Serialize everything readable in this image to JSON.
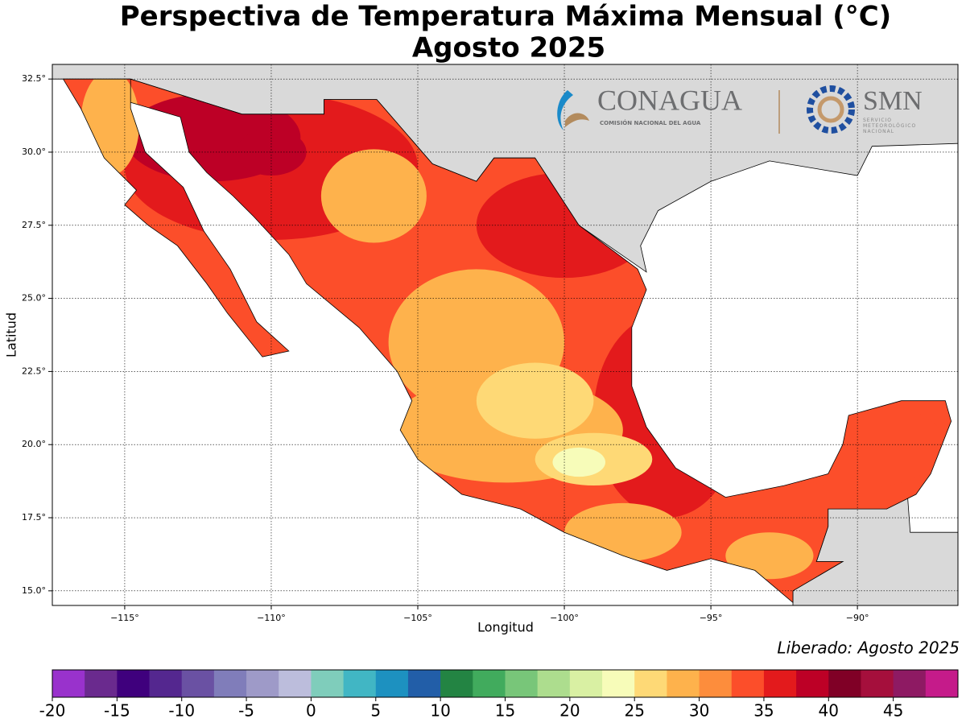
{
  "title": "Perspectiva de Temperatura Máxima Mensual (°C)",
  "subtitle": "Agosto 2025",
  "map": {
    "x_label": "Longitud",
    "y_label": "Latitud",
    "xlim": [
      -117.47,
      -86.57
    ],
    "ylim": [
      14.5,
      33.0
    ],
    "xticks": [
      {
        "value": -115,
        "label": "−115°"
      },
      {
        "value": -110,
        "label": "−110°"
      },
      {
        "value": -105,
        "label": "−105°"
      },
      {
        "value": -100,
        "label": "−100°"
      },
      {
        "value": -95,
        "label": "−95°"
      },
      {
        "value": -90,
        "label": "−90°"
      }
    ],
    "yticks": [
      {
        "value": 15,
        "label": "15.0°"
      },
      {
        "value": 17.5,
        "label": "17.5°"
      },
      {
        "value": 20,
        "label": "20.0°"
      },
      {
        "value": 22.5,
        "label": "22.5°"
      },
      {
        "value": 25,
        "label": "25.0°"
      },
      {
        "value": 27.5,
        "label": "27.5°"
      },
      {
        "value": 30,
        "label": "30.0°"
      },
      {
        "value": 32.5,
        "label": "32.5°"
      }
    ],
    "grid": true
  },
  "logos": {
    "conagua": "CONAGUA",
    "conagua_sub": "COMISIÓN NACIONAL DEL AGUA",
    "smn": "SMN",
    "smn_sub": "SERVICIO METEOROLÓGICO NACIONAL"
  },
  "release_note": "Liberado: Agosto 2025",
  "colorbar": {
    "lim": [
      -20,
      50
    ],
    "colors": [
      "#9932cc",
      "#6a2a8e",
      "#3f007d",
      "#54278f",
      "#6a51a3",
      "#807dba",
      "#9e9ac8",
      "#bcbddc",
      "#7fcdbb",
      "#41b6c4",
      "#1d91c0",
      "#225ea8",
      "#238443",
      "#41ab5d",
      "#78c679",
      "#addd8e",
      "#d9f0a3",
      "#f7fcb9",
      "#fed976",
      "#feb24c",
      "#fd8d3c",
      "#fc4e2a",
      "#e31a1c",
      "#bd0026",
      "#800026",
      "#a50f3c",
      "#8e1a63",
      "#c51b8a"
    ],
    "ticks": [
      -20,
      -15,
      -10,
      -5,
      0,
      5,
      10,
      15,
      20,
      25,
      30,
      35,
      40,
      45
    ]
  }
}
